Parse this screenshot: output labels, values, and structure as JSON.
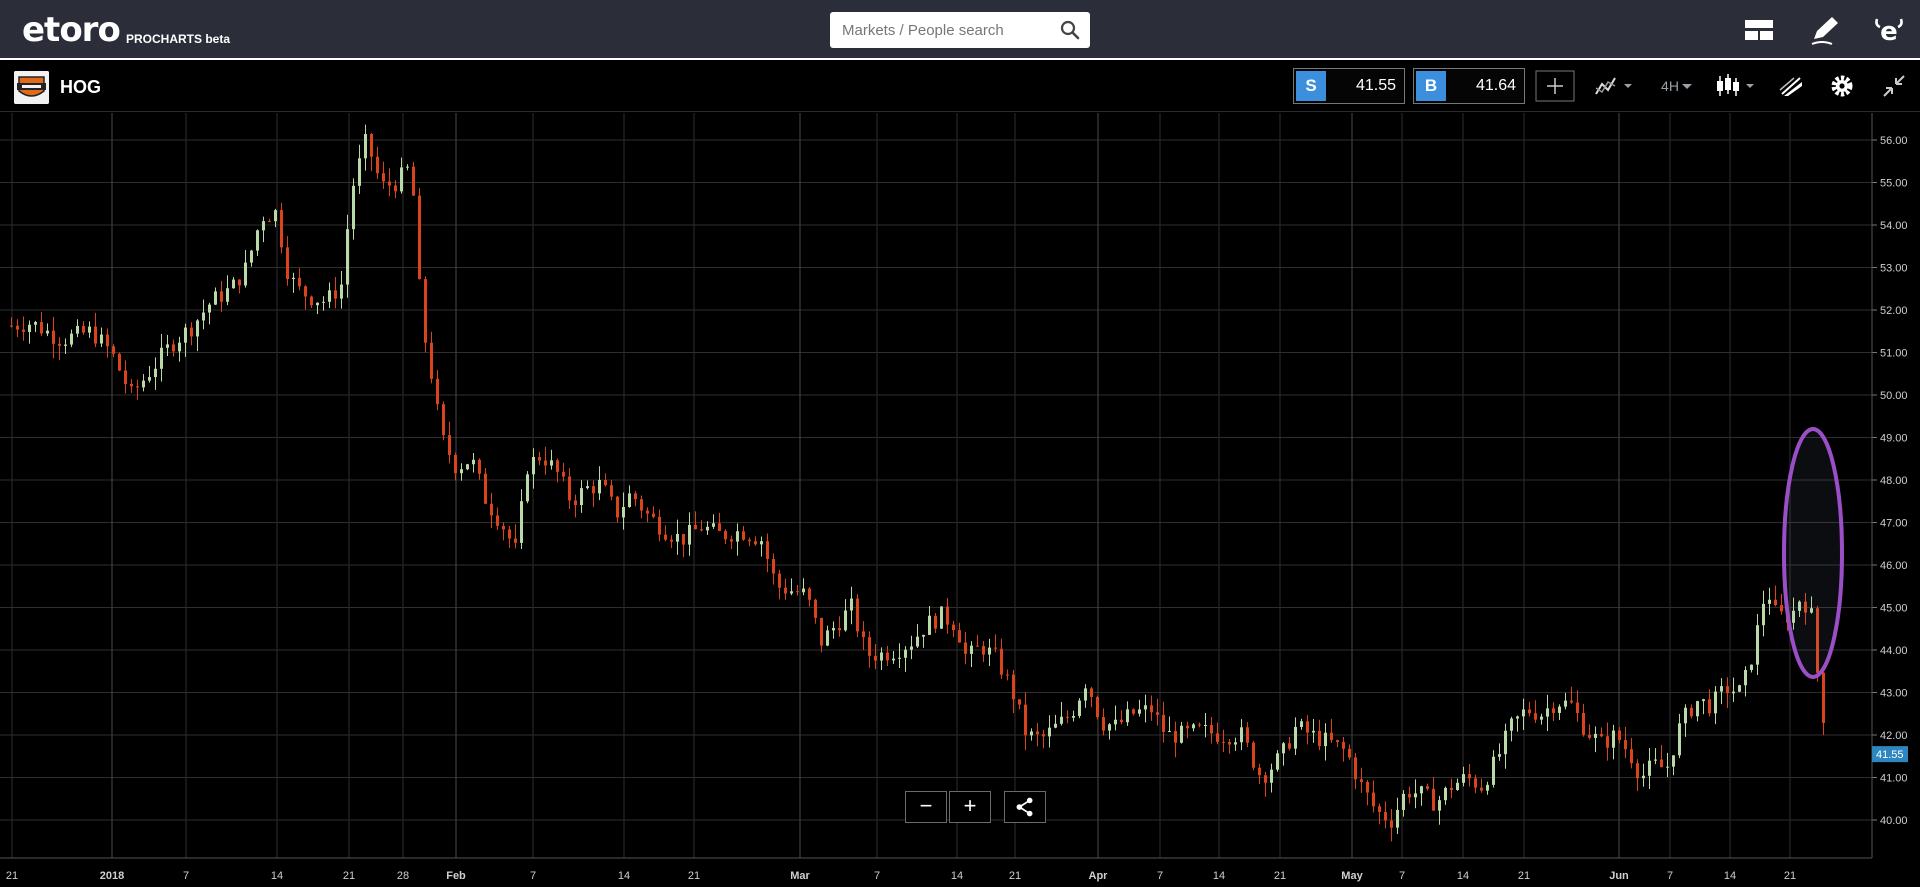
{
  "header": {
    "logo": "etoro",
    "logo_sub": "PROCHARTS beta",
    "search": {
      "placeholder": "Markets / People search"
    },
    "icons": [
      "layout-icon",
      "edit-pen-icon",
      "etoro-profile-icon"
    ]
  },
  "instrument": {
    "symbol": "HOG",
    "sell": {
      "tag": "S",
      "value": "41.55"
    },
    "buy": {
      "tag": "B",
      "value": "41.64"
    },
    "timeframe": "4H",
    "current_price_label": "41.55"
  },
  "controls": {
    "zoom_out": "−",
    "zoom_in": "+"
  },
  "chart_data": {
    "type": "candlestick",
    "y_ticks": [
      "56.00",
      "55.00",
      "54.00",
      "53.00",
      "52.00",
      "51.00",
      "50.00",
      "49.00",
      "48.00",
      "47.00",
      "46.00",
      "45.00",
      "44.00",
      "43.00",
      "42.00",
      "41.00",
      "40.00"
    ],
    "ylim": [
      39.5,
      56.6
    ],
    "x_ticks": [
      "21",
      "2018",
      "7",
      "14",
      "21",
      "28",
      "Feb",
      "7",
      "14",
      "21",
      "Mar",
      "7",
      "14",
      "21",
      "Apr",
      "7",
      "14",
      "21",
      "May",
      "7",
      "14",
      "21",
      "Jun",
      "7",
      "14",
      "21"
    ],
    "last_price": 41.55,
    "colors": {
      "up": "#b9d9a8",
      "down": "#d9441c",
      "grid": "#2e2e2e",
      "highlight": "#9b4fc7",
      "price_label": "#2e86c1"
    },
    "waypoints": [
      [
        0,
        51.6
      ],
      [
        30,
        51.7
      ],
      [
        60,
        51.3
      ],
      [
        90,
        51.5
      ],
      [
        110,
        51.0
      ],
      [
        130,
        50.0
      ],
      [
        150,
        50.6
      ],
      [
        170,
        51.2
      ],
      [
        190,
        51.6
      ],
      [
        210,
        52.2
      ],
      [
        230,
        52.5
      ],
      [
        245,
        53.0
      ],
      [
        260,
        54.2
      ],
      [
        275,
        54.3
      ],
      [
        285,
        53.0
      ],
      [
        295,
        52.5
      ],
      [
        310,
        52.3
      ],
      [
        325,
        52.2
      ],
      [
        340,
        52.6
      ],
      [
        350,
        54.8
      ],
      [
        365,
        56.0
      ],
      [
        380,
        54.9
      ],
      [
        395,
        55.0
      ],
      [
        410,
        55.4
      ],
      [
        420,
        51.8
      ],
      [
        430,
        50.5
      ],
      [
        440,
        49.0
      ],
      [
        455,
        48.3
      ],
      [
        470,
        48.5
      ],
      [
        485,
        47.5
      ],
      [
        500,
        47.0
      ],
      [
        515,
        46.3
      ],
      [
        525,
        48.3
      ],
      [
        540,
        48.6
      ],
      [
        555,
        48.2
      ],
      [
        570,
        47.5
      ],
      [
        585,
        47.8
      ],
      [
        600,
        47.9
      ],
      [
        615,
        47.2
      ],
      [
        630,
        47.7
      ],
      [
        645,
        47.2
      ],
      [
        665,
        46.8
      ],
      [
        680,
        46.6
      ],
      [
        700,
        46.9
      ],
      [
        720,
        46.7
      ],
      [
        740,
        46.8
      ],
      [
        760,
        46.6
      ],
      [
        775,
        45.5
      ],
      [
        790,
        45.4
      ],
      [
        805,
        45.3
      ],
      [
        820,
        44.2
      ],
      [
        835,
        44.6
      ],
      [
        850,
        45.0
      ],
      [
        865,
        43.9
      ],
      [
        880,
        43.9
      ],
      [
        895,
        44.0
      ],
      [
        910,
        44.2
      ],
      [
        925,
        44.6
      ],
      [
        940,
        44.8
      ],
      [
        955,
        44.6
      ],
      [
        965,
        43.8
      ],
      [
        980,
        44.1
      ],
      [
        995,
        43.8
      ],
      [
        1010,
        43.1
      ],
      [
        1025,
        42.0
      ],
      [
        1040,
        41.9
      ],
      [
        1055,
        42.2
      ],
      [
        1070,
        42.5
      ],
      [
        1085,
        43.3
      ],
      [
        1100,
        42.3
      ],
      [
        1115,
        42.2
      ],
      [
        1130,
        42.5
      ],
      [
        1150,
        42.6
      ],
      [
        1165,
        42.0
      ],
      [
        1180,
        42.0
      ],
      [
        1200,
        42.1
      ],
      [
        1220,
        42.0
      ],
      [
        1240,
        42.0
      ],
      [
        1260,
        41.0
      ],
      [
        1280,
        41.5
      ],
      [
        1295,
        42.2
      ],
      [
        1310,
        42.0
      ],
      [
        1330,
        41.8
      ],
      [
        1345,
        41.6
      ],
      [
        1360,
        40.8
      ],
      [
        1375,
        40.2
      ],
      [
        1390,
        40.0
      ],
      [
        1405,
        40.7
      ],
      [
        1420,
        40.6
      ],
      [
        1435,
        40.4
      ],
      [
        1450,
        40.8
      ],
      [
        1465,
        41.0
      ],
      [
        1480,
        40.8
      ],
      [
        1495,
        41.4
      ],
      [
        1510,
        42.2
      ],
      [
        1525,
        42.6
      ],
      [
        1540,
        42.5
      ],
      [
        1555,
        42.8
      ],
      [
        1570,
        42.7
      ],
      [
        1585,
        42.1
      ],
      [
        1600,
        41.8
      ],
      [
        1615,
        42.0
      ],
      [
        1630,
        41.5
      ],
      [
        1640,
        41.0
      ],
      [
        1652,
        41.3
      ],
      [
        1665,
        41.2
      ],
      [
        1680,
        42.3
      ],
      [
        1695,
        42.8
      ],
      [
        1710,
        42.7
      ],
      [
        1725,
        43.1
      ],
      [
        1740,
        43.0
      ],
      [
        1752,
        44.0
      ],
      [
        1765,
        45.5
      ],
      [
        1775,
        44.8
      ],
      [
        1790,
        44.8
      ],
      [
        1800,
        45.3
      ],
      [
        1810,
        44.8
      ],
      [
        1820,
        42.6
      ],
      [
        1830,
        41.9
      ],
      [
        1838,
        41.55
      ]
    ]
  }
}
